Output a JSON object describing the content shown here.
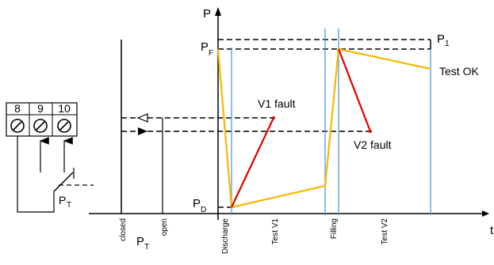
{
  "axes": {
    "y_label": "P",
    "x_label": "t"
  },
  "levels": {
    "p1": "P",
    "p1_sub": "1",
    "pf": "P",
    "pf_sub": "F",
    "pd": "P",
    "pd_sub": "D"
  },
  "annotations": {
    "test_ok": "Test OK",
    "v1_fault": "V1 fault",
    "v2_fault": "V2 fault"
  },
  "time_labels": {
    "discharge": "Discharge",
    "test_v1": "Test V1",
    "filling": "Filling",
    "test_v2": "Test V2"
  },
  "switch_labels": {
    "closed": "closed",
    "open": "open",
    "pt": "P",
    "pt_sub": "T"
  },
  "terminals": [
    "8",
    "9",
    "10"
  ],
  "switch_symbol": {
    "label": "P",
    "sub": "T"
  },
  "colors": {
    "pressure_curve": "#f5b800",
    "fault_curve": "#e00000",
    "time_marker": "#4a9fe0",
    "line": "#000000"
  }
}
